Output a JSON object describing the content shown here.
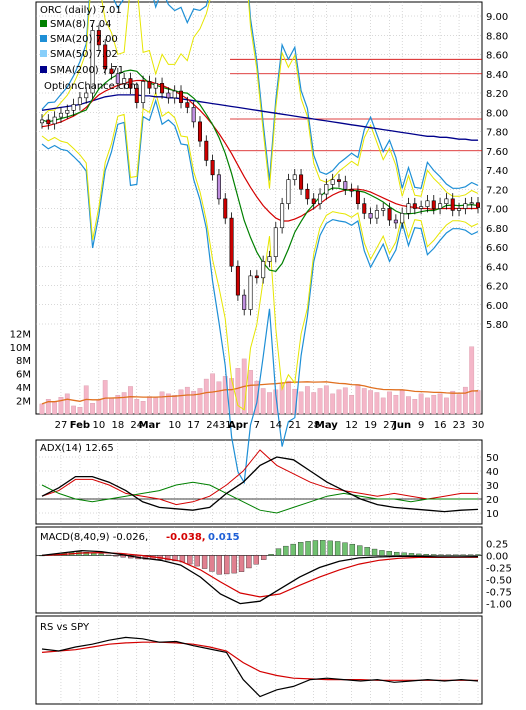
{
  "chart_data": [
    {
      "type": "candlestick",
      "title": "ORC (daily) 7.01",
      "watermark": "OptionChance.com",
      "legend_placement": "top-left",
      "ylim": [
        5.6,
        9.1
      ],
      "y_ticks": [
        "9.00",
        "8.80",
        "8.60",
        "8.40",
        "8.20",
        "8.00",
        "7.80",
        "7.60",
        "7.40",
        "7.20",
        "7.00",
        "6.80",
        "6.60",
        "6.40",
        "6.20",
        "6.00",
        "5.80"
      ],
      "x_ticks": [
        "27",
        "Feb",
        "10",
        "18",
        "24",
        "Mar",
        "10",
        "17",
        "24",
        "31",
        "Apr",
        "7",
        "14",
        "21",
        "28",
        "May",
        "12",
        "19",
        "27",
        "Jun",
        "9",
        "16",
        "23",
        "30"
      ],
      "legend": [
        {
          "label": "SMA(8) 7.04",
          "color": "#008000"
        },
        {
          "label": "SMA(20) 7.00",
          "color": "#1e8fd6"
        },
        {
          "label": "SMA(50) 7.02",
          "color": "#87cefa"
        },
        {
          "label": "SMA(200) 7.71",
          "color": "#00008b"
        }
      ],
      "close": [
        7.92,
        7.88,
        7.95,
        7.99,
        8.02,
        8.08,
        8.15,
        8.2,
        8.85,
        8.7,
        8.45,
        8.4,
        8.3,
        8.35,
        8.25,
        8.1,
        8.32,
        8.25,
        8.3,
        8.2,
        8.15,
        8.22,
        8.1,
        8.05,
        7.9,
        7.7,
        7.5,
        7.35,
        7.1,
        6.9,
        6.4,
        6.1,
        5.95,
        6.3,
        6.28,
        6.45,
        6.5,
        6.8,
        7.05,
        7.3,
        7.35,
        7.2,
        7.1,
        7.05,
        7.15,
        7.25,
        7.3,
        7.28,
        7.2,
        7.18,
        7.05,
        6.95,
        6.9,
        6.98,
        7.0,
        6.88,
        6.85,
        6.95,
        7.05,
        7.0,
        7.02,
        7.08,
        7.0,
        7.05,
        7.1,
        6.98,
        7.0,
        7.05,
        7.06,
        7.01
      ],
      "series": [
        {
          "name": "SMA(20)",
          "values": [
            7.85,
            7.86,
            7.88,
            7.9,
            7.93,
            7.96,
            8.0,
            8.05,
            8.12,
            8.18,
            8.22,
            8.25,
            8.28,
            8.3,
            8.32,
            8.33,
            8.33,
            8.32,
            8.3,
            8.28,
            8.25,
            8.22,
            8.18,
            8.14,
            8.08,
            8.02,
            7.95,
            7.87,
            7.78,
            7.68,
            7.57,
            7.45,
            7.33,
            7.22,
            7.12,
            7.03,
            6.96,
            6.9,
            6.87,
            6.87,
            6.89,
            6.92,
            6.96,
            7.0,
            7.05,
            7.1,
            7.14,
            7.17,
            7.19,
            7.2,
            7.2,
            7.19,
            7.17,
            7.14,
            7.11,
            7.08,
            7.05,
            7.03,
            7.02,
            7.01,
            7.0,
            7.0,
            6.99,
            7.0,
            7.0,
            7.0,
            7.0,
            7.0,
            7.0,
            7.0
          ]
        },
        {
          "name": "SMA(200)",
          "values": [
            8.02,
            8.03,
            8.04,
            8.05,
            8.06,
            8.07,
            8.08,
            8.1,
            8.12,
            8.14,
            8.16,
            8.17,
            8.18,
            8.18,
            8.18,
            8.18,
            8.17,
            8.17,
            8.16,
            8.16,
            8.15,
            8.15,
            8.14,
            8.13,
            8.12,
            8.11,
            8.1,
            8.09,
            8.08,
            8.07,
            8.06,
            8.05,
            8.04,
            8.03,
            8.02,
            8.01,
            8.0,
            7.99,
            7.98,
            7.97,
            7.96,
            7.95,
            7.94,
            7.93,
            7.92,
            7.91,
            7.9,
            7.89,
            7.88,
            7.87,
            7.86,
            7.85,
            7.84,
            7.83,
            7.82,
            7.81,
            7.8,
            7.79,
            7.78,
            7.77,
            7.76,
            7.75,
            7.75,
            7.74,
            7.74,
            7.73,
            7.72,
            7.72,
            7.71,
            7.71
          ]
        }
      ],
      "horizontal_levels": [
        8.55,
        8.4,
        7.93,
        7.6
      ]
    },
    {
      "type": "bar",
      "y_ticks": [
        "12M",
        "10M",
        "8M",
        "6M",
        "4M",
        "2M"
      ],
      "ylim": [
        0,
        13000000
      ],
      "values": [
        1.5,
        2.2,
        1.8,
        2.5,
        3.0,
        1.2,
        1.0,
        4.2,
        1.6,
        2.1,
        5.0,
        2.4,
        2.8,
        3.2,
        4.1,
        2.2,
        1.9,
        2.6,
        2.4,
        3.3,
        3.0,
        2.8,
        3.6,
        4.0,
        3.4,
        3.8,
        5.2,
        6.0,
        4.8,
        5.6,
        5.3,
        6.8,
        8.2,
        6.5,
        4.9,
        3.8,
        3.2,
        3.6,
        4.6,
        4.9,
        3.7,
        3.3,
        4.1,
        3.2,
        3.8,
        4.2,
        3.0,
        3.6,
        3.9,
        2.8,
        4.4,
        3.8,
        3.5,
        3.2,
        2.4,
        3.3,
        2.8,
        3.5,
        2.6,
        2.2,
        3.0,
        2.4,
        2.8,
        3.0,
        2.4,
        3.4,
        2.9,
        4.0,
        10.0,
        3.5
      ]
    },
    {
      "type": "line",
      "title": "ADX(14) 12.65",
      "ylim": [
        5,
        55
      ],
      "y_ticks": [
        "50",
        "40",
        "30",
        "20",
        "10"
      ]
    },
    {
      "type": "bar",
      "title": "MACD(8,40,9) -0.026,",
      "values_text": [
        "-0.038,",
        "0.015"
      ],
      "ylim": [
        -1.1,
        0.3
      ],
      "y_ticks": [
        "0.25",
        "0.00",
        "-0.25",
        "-0.50",
        "-0.75",
        "-1.00"
      ]
    },
    {
      "type": "line",
      "title": "RS vs SPY"
    }
  ],
  "colors": {
    "candle_up": "#ffffff",
    "candle_down": "#cc0000",
    "candle_purple": "#c090e0",
    "sma8": "#008000",
    "sma20": "#1e8fd6",
    "sma50": "#87cefa",
    "sma200": "#00008b",
    "band_upper": "#e6e600",
    "ma_red": "#d40000",
    "volume": "#f4b6c8",
    "vol_ma": "#e07020",
    "grid": "#b0b0b0",
    "hist_pos": "#70c070",
    "hist_neg": "#e08090"
  }
}
